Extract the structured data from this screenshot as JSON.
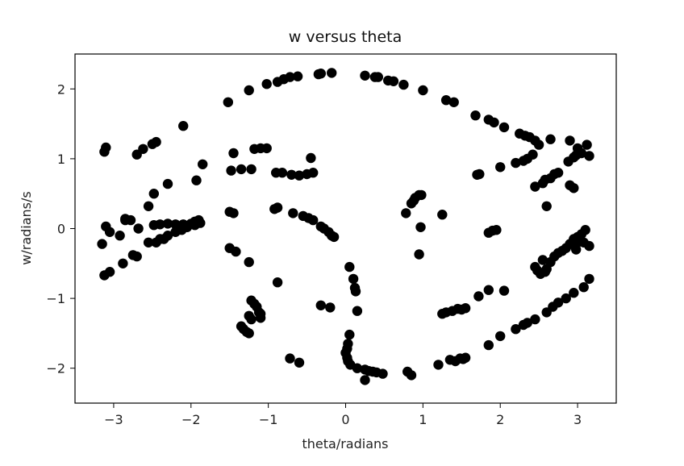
{
  "chart_data": {
    "type": "scatter",
    "title": "w versus theta",
    "xlabel": "theta/radians",
    "ylabel": "w/radians/s",
    "xlim": [
      -3.5,
      3.5
    ],
    "ylim": [
      -2.5,
      2.5
    ],
    "xticks": [
      -3,
      -2,
      -1,
      0,
      1,
      2,
      3
    ],
    "yticks": [
      -2,
      -1,
      0,
      1,
      2
    ],
    "xtick_labels": [
      "−3",
      "−2",
      "−1",
      "0",
      "1",
      "2",
      "3"
    ],
    "ytick_labels": [
      "−2",
      "−1",
      "0",
      "1",
      "2"
    ],
    "grid": false,
    "marker_color": "#000000",
    "series": [
      {
        "points": [
          [
            -1.52,
            1.81
          ],
          [
            -1.25,
            1.98
          ],
          [
            -1.02,
            2.07
          ],
          [
            -0.88,
            2.1
          ],
          [
            -0.8,
            2.14
          ],
          [
            -0.72,
            2.17
          ],
          [
            -0.62,
            2.18
          ],
          [
            -0.35,
            2.21
          ],
          [
            -0.32,
            2.22
          ],
          [
            -0.18,
            2.23
          ],
          [
            0.25,
            2.19
          ],
          [
            0.38,
            2.17
          ],
          [
            0.42,
            2.17
          ],
          [
            0.55,
            2.12
          ],
          [
            0.62,
            2.11
          ],
          [
            0.75,
            2.06
          ],
          [
            1.0,
            1.98
          ],
          [
            1.3,
            1.84
          ],
          [
            1.4,
            1.81
          ],
          [
            1.68,
            1.62
          ],
          [
            1.85,
            1.56
          ],
          [
            1.92,
            1.52
          ],
          [
            2.05,
            1.45
          ],
          [
            2.25,
            1.36
          ],
          [
            2.32,
            1.33
          ],
          [
            2.38,
            1.31
          ],
          [
            2.45,
            1.26
          ],
          [
            2.5,
            1.2
          ],
          [
            2.65,
            1.28
          ],
          [
            2.9,
            1.26
          ],
          [
            3.0,
            1.15
          ],
          [
            3.12,
            1.2
          ],
          [
            -3.12,
            1.1
          ],
          [
            -3.1,
            1.16
          ],
          [
            -2.7,
            1.06
          ],
          [
            -2.62,
            1.14
          ],
          [
            -2.5,
            1.21
          ],
          [
            -2.45,
            1.24
          ],
          [
            -2.1,
            1.47
          ],
          [
            -2.85,
            0.14
          ],
          [
            -2.78,
            0.12
          ],
          [
            -2.55,
            0.32
          ],
          [
            -2.48,
            0.5
          ],
          [
            -2.3,
            0.64
          ],
          [
            -1.93,
            0.69
          ],
          [
            -1.85,
            0.92
          ],
          [
            -1.48,
            0.83
          ],
          [
            -1.45,
            1.08
          ],
          [
            -1.35,
            0.85
          ],
          [
            -1.22,
            0.85
          ],
          [
            -1.18,
            1.14
          ],
          [
            -1.1,
            1.15
          ],
          [
            -1.02,
            1.15
          ],
          [
            -0.9,
            0.8
          ],
          [
            -0.82,
            0.8
          ],
          [
            -0.7,
            0.77
          ],
          [
            -0.6,
            0.76
          ],
          [
            -0.5,
            0.78
          ],
          [
            -0.45,
            1.01
          ],
          [
            -0.42,
            0.8
          ],
          [
            -3.1,
            0.03
          ],
          [
            -3.05,
            -0.05
          ],
          [
            -2.85,
            0.12
          ],
          [
            -2.68,
            0.0
          ],
          [
            -2.48,
            0.05
          ],
          [
            -2.4,
            0.06
          ],
          [
            -2.3,
            0.07
          ],
          [
            -2.2,
            0.06
          ],
          [
            -2.1,
            0.06
          ],
          [
            -2.0,
            0.07
          ],
          [
            -1.95,
            0.1
          ],
          [
            -1.9,
            0.12
          ],
          [
            -1.88,
            0.08
          ],
          [
            -1.95,
            0.05
          ],
          [
            -2.05,
            0.02
          ],
          [
            -2.12,
            -0.02
          ],
          [
            -2.2,
            -0.05
          ],
          [
            -2.3,
            -0.1
          ],
          [
            -2.4,
            -0.15
          ],
          [
            -2.45,
            -0.2
          ],
          [
            -3.15,
            -0.22
          ],
          [
            -2.92,
            -0.1
          ],
          [
            -2.75,
            -0.38
          ],
          [
            -2.7,
            -0.4
          ],
          [
            -2.55,
            -0.2
          ],
          [
            -2.35,
            -0.15
          ],
          [
            -3.12,
            -0.67
          ],
          [
            -3.05,
            -0.62
          ],
          [
            -2.88,
            -0.5
          ],
          [
            -1.5,
            0.24
          ],
          [
            -1.45,
            0.22
          ],
          [
            -0.92,
            0.28
          ],
          [
            -0.88,
            0.3
          ],
          [
            -0.68,
            0.22
          ],
          [
            -0.55,
            0.18
          ],
          [
            -0.48,
            0.15
          ],
          [
            -0.42,
            0.12
          ],
          [
            -0.32,
            0.03
          ],
          [
            -0.28,
            0.0
          ],
          [
            -0.22,
            -0.05
          ],
          [
            -0.18,
            -0.1
          ],
          [
            -0.15,
            -0.12
          ],
          [
            0.78,
            0.22
          ],
          [
            0.85,
            0.36
          ],
          [
            0.88,
            0.4
          ],
          [
            0.9,
            0.44
          ],
          [
            0.95,
            0.48
          ],
          [
            0.98,
            0.48
          ],
          [
            0.97,
            0.02
          ],
          [
            0.95,
            -0.37
          ],
          [
            1.25,
            0.2
          ],
          [
            1.7,
            0.77
          ],
          [
            1.73,
            0.78
          ],
          [
            2.0,
            0.88
          ],
          [
            2.2,
            0.94
          ],
          [
            2.3,
            0.97
          ],
          [
            2.35,
            1.0
          ],
          [
            2.42,
            1.06
          ],
          [
            2.58,
            0.7
          ],
          [
            2.65,
            0.72
          ],
          [
            2.7,
            0.78
          ],
          [
            2.75,
            0.8
          ],
          [
            2.88,
            0.96
          ],
          [
            2.95,
            1.02
          ],
          [
            2.98,
            1.05
          ],
          [
            3.05,
            1.08
          ],
          [
            3.15,
            1.04
          ],
          [
            2.45,
            0.6
          ],
          [
            2.55,
            0.65
          ],
          [
            2.9,
            0.62
          ],
          [
            2.95,
            0.58
          ],
          [
            2.6,
            0.32
          ],
          [
            1.85,
            -0.06
          ],
          [
            1.9,
            -0.03
          ],
          [
            1.95,
            -0.02
          ],
          [
            2.55,
            -0.45
          ],
          [
            2.65,
            -0.48
          ],
          [
            2.7,
            -0.4
          ],
          [
            2.75,
            -0.35
          ],
          [
            2.8,
            -0.32
          ],
          [
            2.85,
            -0.28
          ],
          [
            2.9,
            -0.22
          ],
          [
            2.95,
            -0.15
          ],
          [
            3.0,
            -0.12
          ],
          [
            3.05,
            -0.08
          ],
          [
            3.1,
            -0.02
          ],
          [
            3.15,
            -0.25
          ],
          [
            2.98,
            -0.3
          ],
          [
            3.08,
            -0.2
          ],
          [
            2.45,
            -0.55
          ],
          [
            2.48,
            -0.6
          ],
          [
            2.52,
            -0.65
          ],
          [
            2.58,
            -0.62
          ],
          [
            3.15,
            -0.72
          ],
          [
            3.0,
            -0.2
          ],
          [
            2.6,
            -0.58
          ],
          [
            -1.5,
            -0.28
          ],
          [
            -1.42,
            -0.33
          ],
          [
            -1.25,
            -0.48
          ],
          [
            -0.88,
            -0.77
          ],
          [
            -1.22,
            -1.03
          ],
          [
            -1.18,
            -1.08
          ],
          [
            -1.15,
            -1.12
          ],
          [
            -1.12,
            -1.2
          ],
          [
            -1.1,
            -1.22
          ],
          [
            -1.1,
            -1.28
          ],
          [
            -1.25,
            -1.25
          ],
          [
            -1.22,
            -1.3
          ],
          [
            -1.35,
            -1.4
          ],
          [
            -1.32,
            -1.44
          ],
          [
            -1.28,
            -1.48
          ],
          [
            -1.25,
            -1.5
          ],
          [
            -0.72,
            -1.86
          ],
          [
            -0.6,
            -1.92
          ],
          [
            -0.32,
            -1.1
          ],
          [
            -0.2,
            -1.13
          ],
          [
            0.05,
            -0.55
          ],
          [
            0.1,
            -0.72
          ],
          [
            0.12,
            -0.85
          ],
          [
            0.13,
            -0.9
          ],
          [
            0.15,
            -1.18
          ],
          [
            0.05,
            -1.52
          ],
          [
            0.03,
            -1.65
          ],
          [
            0.02,
            -1.72
          ],
          [
            0.0,
            -1.78
          ],
          [
            0.02,
            -1.85
          ],
          [
            0.03,
            -1.9
          ],
          [
            0.06,
            -1.95
          ],
          [
            0.15,
            -2.0
          ],
          [
            0.25,
            -2.02
          ],
          [
            0.3,
            -2.04
          ],
          [
            0.35,
            -2.05
          ],
          [
            0.4,
            -2.06
          ],
          [
            0.48,
            -2.08
          ],
          [
            0.25,
            -2.17
          ],
          [
            0.8,
            -2.05
          ],
          [
            0.85,
            -2.1
          ],
          [
            1.2,
            -1.95
          ],
          [
            1.35,
            -1.88
          ],
          [
            1.42,
            -1.9
          ],
          [
            1.48,
            -1.86
          ],
          [
            1.55,
            -1.85
          ],
          [
            1.52,
            -1.87
          ],
          [
            1.25,
            -1.22
          ],
          [
            1.3,
            -1.2
          ],
          [
            1.38,
            -1.18
          ],
          [
            1.45,
            -1.15
          ],
          [
            1.5,
            -1.16
          ],
          [
            1.55,
            -1.14
          ],
          [
            1.72,
            -0.97
          ],
          [
            1.85,
            -0.88
          ],
          [
            2.05,
            -0.89
          ],
          [
            1.85,
            -1.67
          ],
          [
            2.0,
            -1.54
          ],
          [
            2.2,
            -1.44
          ],
          [
            2.3,
            -1.38
          ],
          [
            2.35,
            -1.35
          ],
          [
            2.45,
            -1.3
          ],
          [
            2.6,
            -1.2
          ],
          [
            2.68,
            -1.12
          ],
          [
            2.75,
            -1.06
          ],
          [
            2.85,
            -1.0
          ],
          [
            2.95,
            -0.92
          ],
          [
            3.08,
            -0.84
          ]
        ]
      }
    ]
  }
}
